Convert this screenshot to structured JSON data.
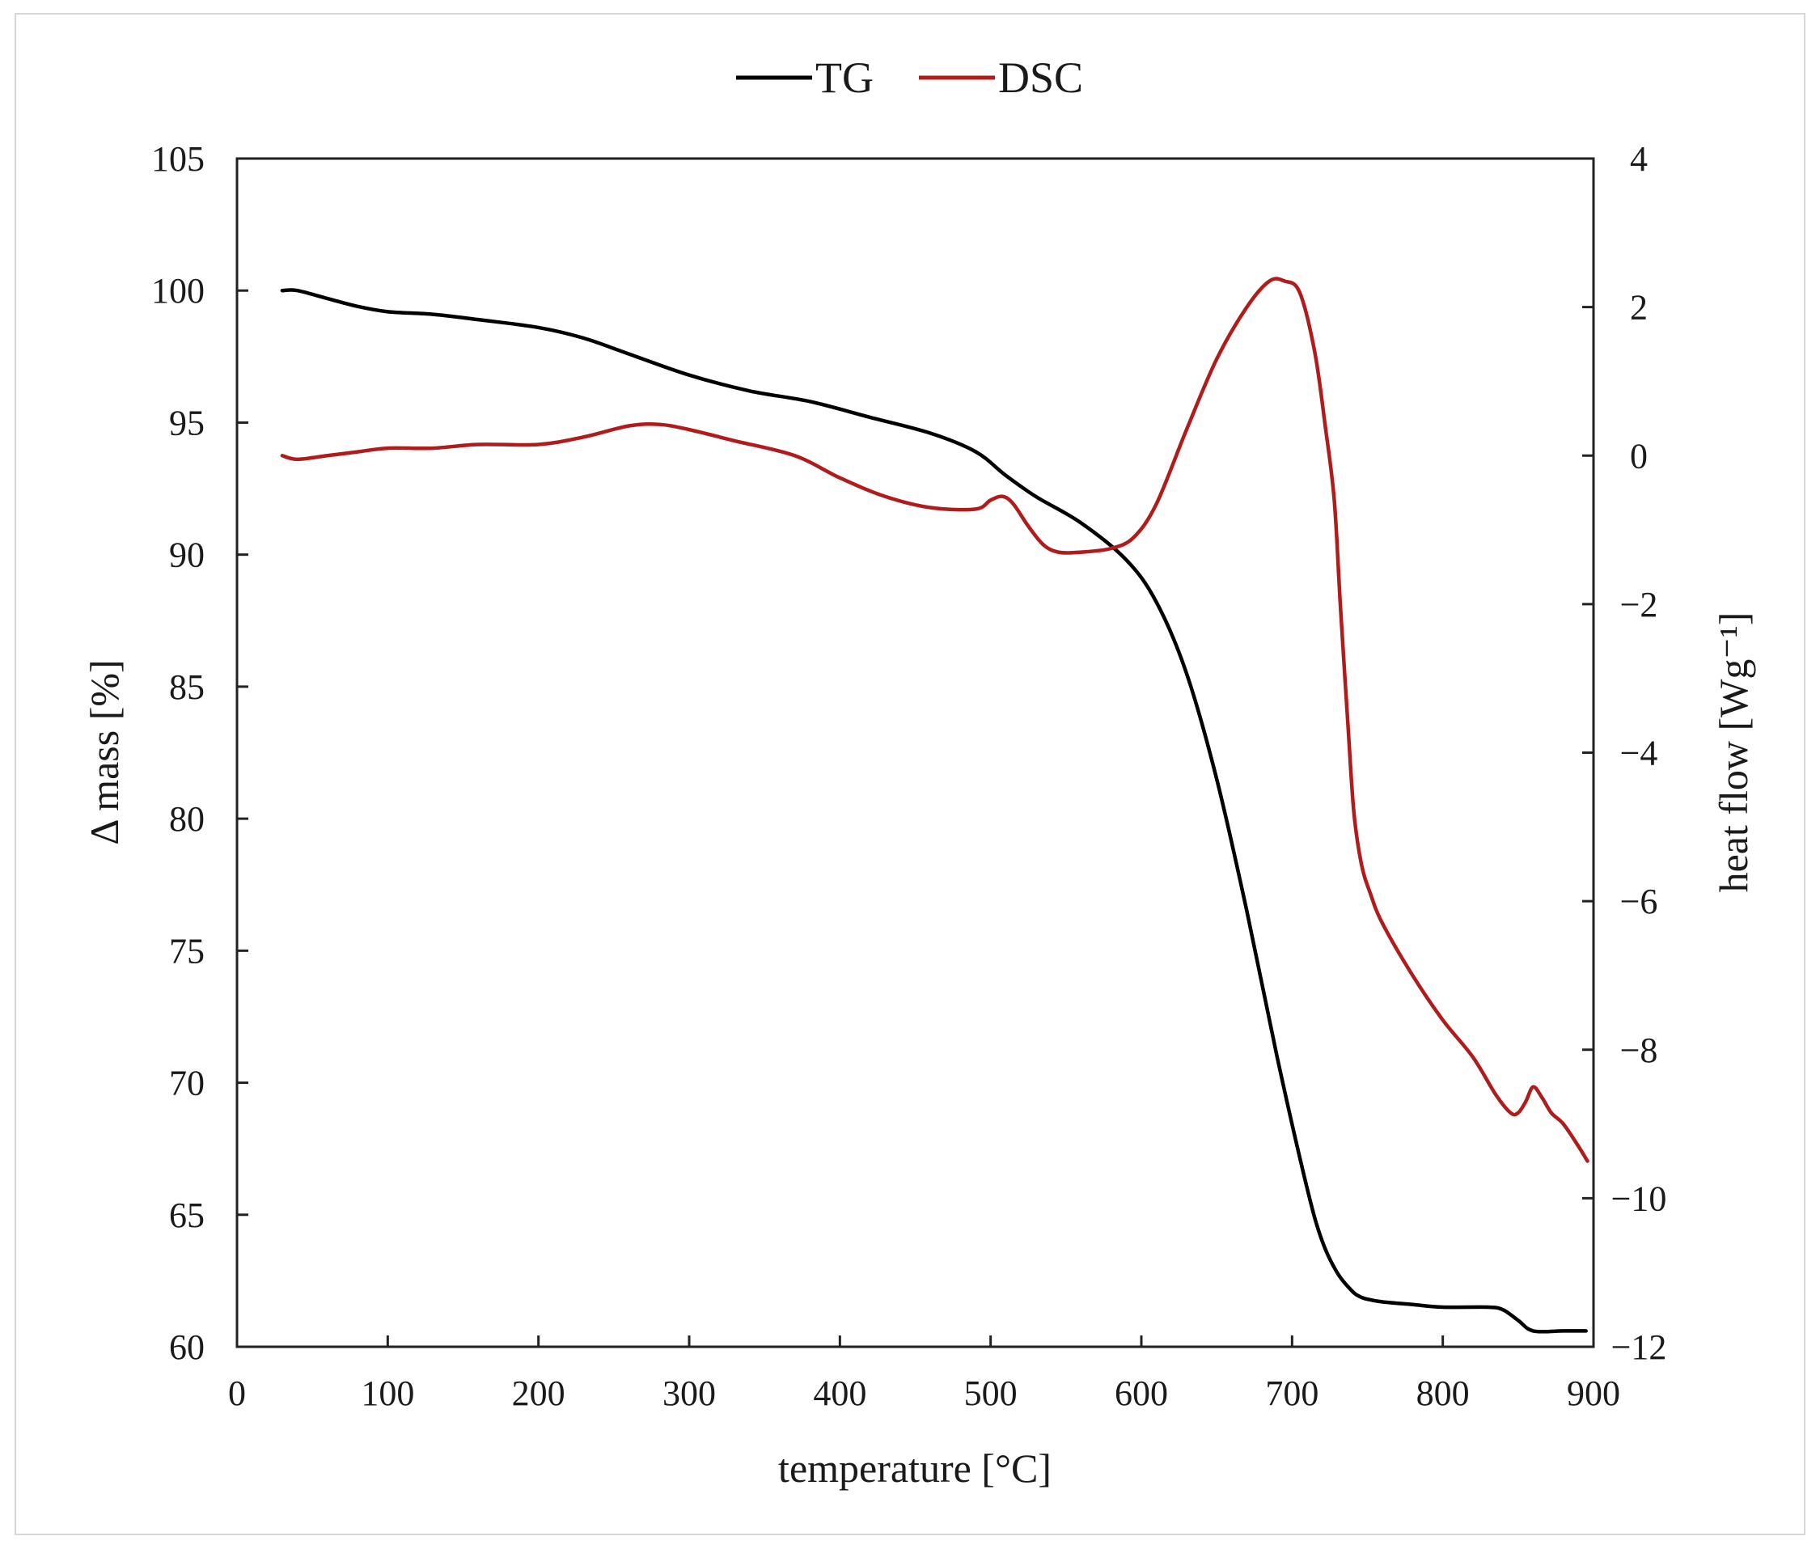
{
  "chart_data": {
    "type": "line",
    "title": "",
    "xlabel": "temperature [°C]",
    "ylabel_left": "Δ mass [%]",
    "ylabel_right": "heat flow [Wg⁻¹]",
    "xlim": [
      0,
      900
    ],
    "ylim_left": [
      60,
      105
    ],
    "ylim_right": [
      -12,
      4
    ],
    "x_ticks": [
      0,
      100,
      200,
      300,
      400,
      500,
      600,
      700,
      800,
      900
    ],
    "x_tick_labels": [
      "0",
      "100",
      "200",
      "300",
      "400",
      "500",
      "600",
      "700",
      "800",
      "900"
    ],
    "y_left_ticks": [
      60,
      65,
      70,
      75,
      80,
      85,
      90,
      95,
      100,
      105
    ],
    "y_left_tick_labels": [
      "60",
      "65",
      "70",
      "75",
      "80",
      "85",
      "90",
      "95",
      "100",
      "105"
    ],
    "y_right_ticks": [
      -12,
      -10,
      -8,
      -6,
      -4,
      -2,
      0,
      2,
      4
    ],
    "y_right_tick_labels": [
      "−12",
      "−10",
      "−8",
      "−6",
      "−4",
      "−2",
      "0",
      "2",
      "4"
    ],
    "grid": false,
    "legend": {
      "placement": "top-center",
      "entries": [
        "TG",
        "DSC"
      ]
    },
    "series": [
      {
        "name": "TG",
        "axis": "left",
        "color": "#000000",
        "x": [
          30,
          40,
          60,
          80,
          100,
          130,
          160,
          200,
          230,
          260,
          300,
          340,
          380,
          420,
          460,
          490,
          510,
          530,
          560,
          590,
          610,
          630,
          650,
          670,
          690,
          710,
          720,
          730,
          740,
          745,
          750,
          760,
          780,
          800,
          830,
          840,
          850,
          860,
          880,
          895
        ],
        "values": [
          100.0,
          100.0,
          99.7,
          99.4,
          99.2,
          99.1,
          98.9,
          98.6,
          98.2,
          97.6,
          96.8,
          96.2,
          95.8,
          95.2,
          94.6,
          93.9,
          93.0,
          92.2,
          91.2,
          89.8,
          88.2,
          85.5,
          81.5,
          76.5,
          71.0,
          66.0,
          64.0,
          62.8,
          62.1,
          61.9,
          61.8,
          61.7,
          61.6,
          61.5,
          61.5,
          61.4,
          61.0,
          60.6,
          60.6,
          60.6
        ]
      },
      {
        "name": "DSC",
        "axis": "right",
        "color": "#b01c1c",
        "x": [
          30,
          40,
          60,
          80,
          100,
          130,
          160,
          200,
          230,
          260,
          280,
          300,
          330,
          370,
          400,
          430,
          460,
          490,
          500,
          508,
          515,
          525,
          535,
          545,
          560,
          580,
          595,
          610,
          630,
          650,
          670,
          685,
          695,
          705,
          715,
          722,
          728,
          732,
          737,
          741,
          746,
          752,
          760,
          780,
          800,
          820,
          835,
          845,
          850,
          855,
          860,
          866,
          872,
          880,
          890,
          896
        ],
        "values": [
          0.0,
          -0.05,
          0.0,
          0.05,
          0.1,
          0.1,
          0.15,
          0.15,
          0.25,
          0.4,
          0.42,
          0.35,
          0.2,
          0.0,
          -0.3,
          -0.55,
          -0.7,
          -0.72,
          -0.6,
          -0.55,
          -0.65,
          -0.95,
          -1.2,
          -1.3,
          -1.3,
          -1.25,
          -1.1,
          -0.65,
          0.35,
          1.3,
          2.0,
          2.35,
          2.35,
          2.2,
          1.4,
          0.4,
          -0.6,
          -2.0,
          -3.6,
          -4.8,
          -5.5,
          -5.9,
          -6.3,
          -7.0,
          -7.6,
          -8.1,
          -8.6,
          -8.85,
          -8.85,
          -8.7,
          -8.5,
          -8.65,
          -8.85,
          -9.0,
          -9.3,
          -9.5
        ]
      }
    ]
  }
}
